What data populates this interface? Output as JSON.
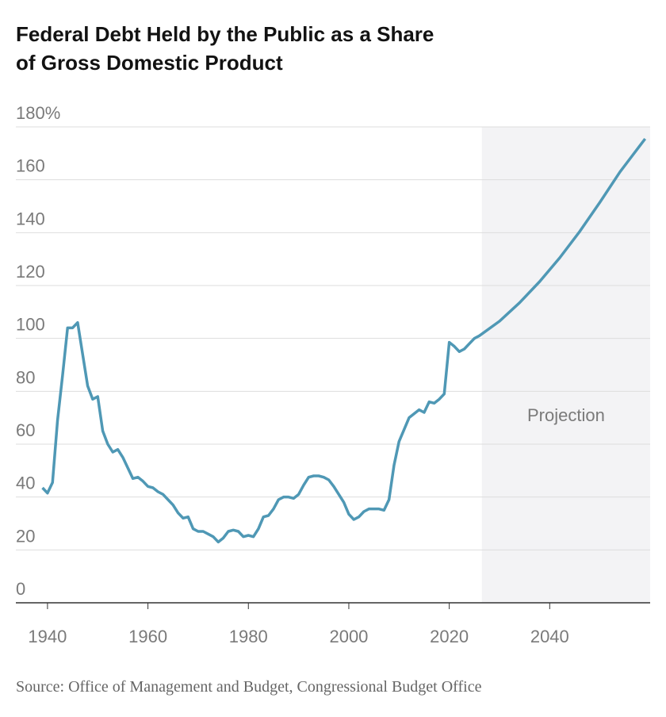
{
  "chart_data": {
    "type": "line",
    "title": "Federal Debt Held by the Public as a Share of Gross Domestic Product",
    "source": "Source: Office of Management and Budget, Congressional Budget Office",
    "projection": {
      "label": "Projection",
      "start": 2026.5
    },
    "x": [
      1939,
      1940,
      1941,
      1942,
      1943,
      1944,
      1945,
      1946,
      1947,
      1948,
      1949,
      1950,
      1951,
      1952,
      1953,
      1954,
      1955,
      1956,
      1957,
      1958,
      1959,
      1960,
      1961,
      1962,
      1963,
      1964,
      1965,
      1966,
      1967,
      1968,
      1969,
      1970,
      1971,
      1972,
      1973,
      1974,
      1975,
      1976,
      1977,
      1978,
      1979,
      1980,
      1981,
      1982,
      1983,
      1984,
      1985,
      1986,
      1987,
      1988,
      1989,
      1990,
      1991,
      1992,
      1993,
      1994,
      1995,
      1996,
      1997,
      1998,
      1999,
      2000,
      2001,
      2002,
      2003,
      2004,
      2005,
      2006,
      2007,
      2008,
      2009,
      2010,
      2011,
      2012,
      2013,
      2014,
      2015,
      2016,
      2017,
      2018,
      2019,
      2020,
      2021,
      2022,
      2023,
      2024,
      2025,
      2026,
      2030,
      2034,
      2038,
      2042,
      2046,
      2050,
      2054,
      2056,
      2058,
      2059
    ],
    "series": [
      {
        "name": "Debt held by the public",
        "color": "#4f98b5",
        "values": [
          43.5,
          41.5,
          45.5,
          69,
          86,
          104,
          104,
          106,
          94,
          82,
          77,
          78,
          65,
          60,
          57,
          58,
          55,
          51,
          47,
          47.5,
          46,
          44,
          43.5,
          42,
          41,
          39,
          37,
          34,
          32,
          32.5,
          28,
          27,
          27,
          26,
          25,
          23,
          24.5,
          27,
          27.5,
          27,
          25,
          25.5,
          25,
          28,
          32.5,
          33,
          35.5,
          39,
          40,
          40,
          39.5,
          41,
          44.5,
          47.5,
          48,
          48,
          47.5,
          46.5,
          44,
          41,
          38,
          33.5,
          31.5,
          32.5,
          34.5,
          35.5,
          35.5,
          35.5,
          35,
          39,
          52,
          61,
          65.5,
          70,
          71.5,
          73,
          72,
          76,
          75.5,
          77,
          79,
          98.5,
          97,
          95,
          96,
          98,
          100,
          101,
          106.5,
          113.5,
          121.5,
          130.5,
          140.5,
          151.5,
          163,
          168,
          173,
          175.5
        ]
      }
    ],
    "xlim": [
      1933.7,
      2060
    ],
    "ylim": [
      0,
      180
    ],
    "xticks": [
      1940,
      1960,
      1980,
      2000,
      2020,
      2040
    ],
    "yticks": [
      0,
      20,
      40,
      60,
      80,
      100,
      120,
      140,
      160,
      {
        "value": 180,
        "label": "180%"
      }
    ],
    "grid": true
  }
}
